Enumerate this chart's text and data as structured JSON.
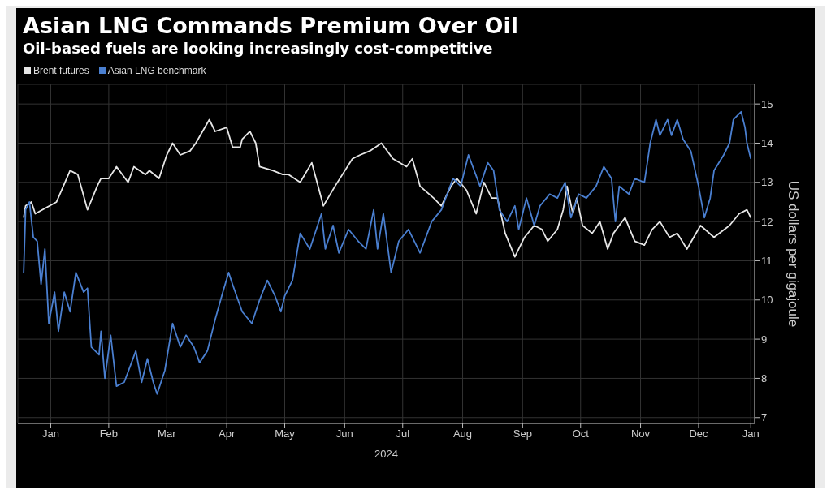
{
  "chart_data": {
    "type": "line",
    "title": "Asian LNG Commands Premium Over Oil",
    "subtitle": "Oil-based fuels are looking increasingly cost-competitive",
    "xlabel": "2024",
    "ylabel": "US dollars per gigajoule",
    "legend": "top left",
    "grid": true,
    "xlim": [
      "2023-12-30",
      "2025-01-14"
    ],
    "xticks": [
      {
        "value": "2024-01-16",
        "label": "Jan"
      },
      {
        "value": "2024-02-15",
        "label": "Feb"
      },
      {
        "value": "2024-03-16",
        "label": "Mar"
      },
      {
        "value": "2024-04-16",
        "label": "Apr"
      },
      {
        "value": "2024-05-16",
        "label": "May"
      },
      {
        "value": "2024-06-16",
        "label": "Jun"
      },
      {
        "value": "2024-07-16",
        "label": "Jul"
      },
      {
        "value": "2024-08-16",
        "label": "Aug"
      },
      {
        "value": "2024-09-16",
        "label": "Sep"
      },
      {
        "value": "2024-10-16",
        "label": "Oct"
      },
      {
        "value": "2024-11-16",
        "label": "Nov"
      },
      {
        "value": "2024-12-16",
        "label": "Dec"
      },
      {
        "value": "2025-01-12",
        "label": "Jan"
      }
    ],
    "ylim": [
      6.85,
      15.5
    ],
    "yticks": [
      7,
      8,
      9,
      10,
      11,
      12,
      13,
      14,
      15
    ],
    "series": [
      {
        "name": "Brent futures",
        "color": "#e6e6e6",
        "x": [
          "2024-01-02",
          "2024-01-03",
          "2024-01-06",
          "2024-01-08",
          "2024-01-19",
          "2024-01-26",
          "2024-01-30",
          "2024-02-04",
          "2024-02-09",
          "2024-02-11",
          "2024-02-15",
          "2024-02-19",
          "2024-02-25",
          "2024-02-28",
          "2024-03-05",
          "2024-03-07",
          "2024-03-12",
          "2024-03-16",
          "2024-03-19",
          "2024-03-23",
          "2024-03-28",
          "2024-03-31",
          "2024-04-07",
          "2024-04-10",
          "2024-04-16",
          "2024-04-19",
          "2024-04-23",
          "2024-04-24",
          "2024-04-28",
          "2024-05-01",
          "2024-05-03",
          "2024-05-10",
          "2024-05-15",
          "2024-05-18",
          "2024-05-24",
          "2024-05-30",
          "2024-06-05",
          "2024-06-11",
          "2024-06-20",
          "2024-06-24",
          "2024-06-29",
          "2024-07-05",
          "2024-07-11",
          "2024-07-18",
          "2024-07-21",
          "2024-07-25",
          "2024-08-01",
          "2024-08-05",
          "2024-08-10",
          "2024-08-13",
          "2024-08-18",
          "2024-08-23",
          "2024-08-27",
          "2024-08-31",
          "2024-09-03",
          "2024-09-07",
          "2024-09-12",
          "2024-09-17",
          "2024-09-22",
          "2024-09-26",
          "2024-09-29",
          "2024-10-04",
          "2024-10-07",
          "2024-10-09",
          "2024-10-12",
          "2024-10-14",
          "2024-10-17",
          "2024-10-22",
          "2024-10-26",
          "2024-10-30",
          "2024-11-02",
          "2024-11-08",
          "2024-11-13",
          "2024-11-18",
          "2024-11-22",
          "2024-11-26",
          "2024-12-01",
          "2024-12-05",
          "2024-12-10",
          "2024-12-17",
          "2024-12-24",
          "2025-01-01",
          "2025-01-06",
          "2025-01-10",
          "2025-01-12"
        ],
        "values": [
          12.1,
          12.4,
          12.5,
          12.2,
          12.5,
          13.3,
          13.2,
          12.3,
          12.9,
          13.1,
          13.1,
          13.4,
          13.0,
          13.4,
          13.2,
          13.3,
          13.1,
          13.7,
          14.0,
          13.7,
          13.8,
          14.0,
          14.6,
          14.3,
          14.4,
          13.9,
          13.9,
          14.1,
          14.3,
          14.0,
          13.4,
          13.3,
          13.2,
          13.2,
          13.0,
          13.5,
          12.4,
          12.9,
          13.6,
          13.7,
          13.8,
          14.0,
          13.6,
          13.4,
          13.6,
          12.9,
          12.6,
          12.4,
          12.9,
          13.1,
          12.8,
          12.2,
          13.0,
          12.6,
          12.6,
          11.7,
          11.1,
          11.6,
          11.9,
          11.8,
          11.5,
          11.8,
          12.3,
          12.9,
          12.2,
          12.6,
          11.9,
          11.7,
          12.0,
          11.3,
          11.7,
          12.1,
          11.5,
          11.4,
          11.8,
          12.0,
          11.6,
          11.7,
          11.3,
          11.9,
          11.6,
          11.9,
          12.2,
          12.3,
          12.1
        ]
      },
      {
        "name": "Asian LNG benchmark",
        "color": "#4a7fd0",
        "x": [
          "2024-01-02",
          "2024-01-03",
          "2024-01-05",
          "2024-01-07",
          "2024-01-09",
          "2024-01-11",
          "2024-01-13",
          "2024-01-15",
          "2024-01-18",
          "2024-01-20",
          "2024-01-23",
          "2024-01-26",
          "2024-01-29",
          "2024-02-02",
          "2024-02-04",
          "2024-02-06",
          "2024-02-10",
          "2024-02-11",
          "2024-02-13",
          "2024-02-16",
          "2024-02-19",
          "2024-02-23",
          "2024-02-29",
          "2024-03-03",
          "2024-03-06",
          "2024-03-09",
          "2024-03-11",
          "2024-03-15",
          "2024-03-19",
          "2024-03-23",
          "2024-03-26",
          "2024-03-30",
          "2024-04-02",
          "2024-04-06",
          "2024-04-10",
          "2024-04-14",
          "2024-04-17",
          "2024-04-19",
          "2024-04-24",
          "2024-04-29",
          "2024-05-03",
          "2024-05-07",
          "2024-05-11",
          "2024-05-14",
          "2024-05-16",
          "2024-05-20",
          "2024-05-24",
          "2024-05-29",
          "2024-06-04",
          "2024-06-06",
          "2024-06-10",
          "2024-06-13",
          "2024-06-18",
          "2024-06-23",
          "2024-06-27",
          "2024-07-01",
          "2024-07-03",
          "2024-07-06",
          "2024-07-10",
          "2024-07-14",
          "2024-07-19",
          "2024-07-25",
          "2024-07-31",
          "2024-08-05",
          "2024-08-11",
          "2024-08-15",
          "2024-08-19",
          "2024-08-25",
          "2024-08-29",
          "2024-09-01",
          "2024-09-04",
          "2024-09-08",
          "2024-09-12",
          "2024-09-14",
          "2024-09-18",
          "2024-09-22",
          "2024-09-25",
          "2024-09-30",
          "2024-10-04",
          "2024-10-08",
          "2024-10-11",
          "2024-10-15",
          "2024-10-19",
          "2024-10-24",
          "2024-10-28",
          "2024-11-01",
          "2024-11-03",
          "2024-11-05",
          "2024-11-10",
          "2024-11-13",
          "2024-11-18",
          "2024-11-21",
          "2024-11-24",
          "2024-11-26",
          "2024-11-30",
          "2024-12-02",
          "2024-12-05",
          "2024-12-08",
          "2024-12-12",
          "2024-12-16",
          "2024-12-19",
          "2024-12-22",
          "2024-12-24",
          "2024-12-29",
          "2025-01-01",
          "2025-01-03",
          "2025-01-07",
          "2025-01-09",
          "2025-01-10",
          "2025-01-12"
        ],
        "values": [
          10.7,
          12.3,
          12.5,
          11.6,
          11.5,
          10.4,
          11.3,
          9.4,
          10.2,
          9.2,
          10.2,
          9.7,
          10.7,
          10.2,
          10.3,
          8.8,
          8.6,
          9.2,
          8.0,
          9.1,
          7.8,
          7.9,
          8.7,
          7.9,
          8.5,
          7.9,
          7.6,
          8.2,
          9.4,
          8.8,
          9.1,
          8.8,
          8.4,
          8.7,
          9.5,
          10.2,
          10.7,
          10.4,
          9.7,
          9.4,
          10.0,
          10.5,
          10.1,
          9.7,
          10.1,
          10.5,
          11.7,
          11.3,
          12.2,
          11.3,
          11.9,
          11.2,
          11.8,
          11.5,
          11.3,
          12.3,
          11.3,
          12.2,
          10.7,
          11.5,
          11.8,
          11.2,
          12.0,
          12.3,
          13.1,
          12.9,
          13.7,
          12.9,
          13.5,
          13.3,
          12.3,
          12.0,
          12.4,
          11.8,
          12.6,
          11.9,
          12.4,
          12.7,
          12.6,
          13.0,
          12.1,
          12.7,
          12.6,
          12.9,
          13.4,
          13.1,
          12.0,
          12.9,
          12.7,
          13.1,
          13.0,
          14.0,
          14.6,
          14.2,
          14.6,
          14.2,
          14.6,
          14.1,
          13.8,
          12.9,
          12.1,
          12.6,
          13.3,
          13.7,
          14.0,
          14.6,
          14.8,
          14.4,
          14.0,
          13.6
        ]
      }
    ]
  }
}
